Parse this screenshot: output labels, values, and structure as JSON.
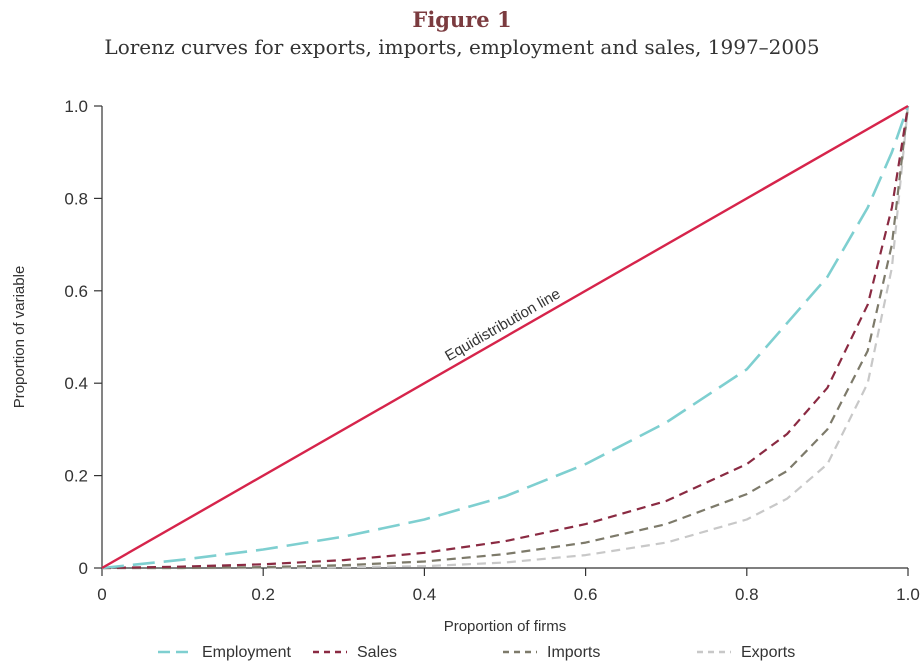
{
  "header": {
    "figure_label": "Figure 1",
    "title": "Lorenz curves for exports, imports, employment and sales, 1997–2005"
  },
  "chart_data": {
    "type": "line",
    "title": "Lorenz curves for exports, imports, employment and sales, 1997–2005",
    "xlabel": "Proportion of firms",
    "ylabel": "Proportion of variable",
    "xlim": [
      0,
      1
    ],
    "ylim": [
      0,
      1
    ],
    "x_ticks": [
      {
        "value": 0,
        "label": "0"
      },
      {
        "value": 0.2,
        "label": "0.2"
      },
      {
        "value": 0.4,
        "label": "0.4"
      },
      {
        "value": 0.6,
        "label": "0.6"
      },
      {
        "value": 0.8,
        "label": "0.8"
      },
      {
        "value": 1.0,
        "label": "1.0"
      }
    ],
    "y_ticks": [
      {
        "value": 0,
        "label": "0"
      },
      {
        "value": 0.2,
        "label": "0.2"
      },
      {
        "value": 0.4,
        "label": "0.4"
      },
      {
        "value": 0.6,
        "label": "0.6"
      },
      {
        "value": 0.8,
        "label": "0.8"
      },
      {
        "value": 1.0,
        "label": "1.0"
      }
    ],
    "grid": false,
    "legend_position": "bottom",
    "annotation": {
      "text": "Equidistribution line",
      "x": 0.5,
      "y": 0.5
    },
    "series": [
      {
        "name": "Equidistribution line",
        "in_legend": false,
        "color": "#d6244b",
        "style": "solid",
        "x": [
          0,
          1
        ],
        "y": [
          0,
          1
        ]
      },
      {
        "name": "Employment",
        "in_legend": true,
        "color": "#7ecfd0",
        "style": "long-dash",
        "x": [
          0,
          0.1,
          0.2,
          0.3,
          0.4,
          0.5,
          0.6,
          0.7,
          0.8,
          0.9,
          0.95,
          0.98,
          1.0
        ],
        "y": [
          0,
          0.018,
          0.04,
          0.068,
          0.105,
          0.155,
          0.225,
          0.315,
          0.43,
          0.63,
          0.78,
          0.9,
          1.0
        ]
      },
      {
        "name": "Sales",
        "in_legend": true,
        "color": "#8a2a42",
        "style": "dash",
        "x": [
          0,
          0.1,
          0.2,
          0.3,
          0.4,
          0.5,
          0.6,
          0.7,
          0.8,
          0.85,
          0.9,
          0.95,
          0.98,
          1.0
        ],
        "y": [
          0,
          0.003,
          0.008,
          0.017,
          0.033,
          0.058,
          0.095,
          0.145,
          0.225,
          0.29,
          0.39,
          0.57,
          0.78,
          1.0
        ]
      },
      {
        "name": "Imports",
        "in_legend": true,
        "color": "#7d7a6a",
        "style": "dash",
        "x": [
          0,
          0.1,
          0.2,
          0.3,
          0.4,
          0.5,
          0.6,
          0.7,
          0.8,
          0.85,
          0.9,
          0.95,
          0.98,
          1.0
        ],
        "y": [
          0,
          0,
          0.002,
          0.006,
          0.014,
          0.03,
          0.055,
          0.095,
          0.16,
          0.21,
          0.3,
          0.47,
          0.7,
          1.0
        ]
      },
      {
        "name": "Exports",
        "in_legend": true,
        "color": "#c8c8c8",
        "style": "dash",
        "x": [
          0,
          0.2,
          0.4,
          0.5,
          0.6,
          0.7,
          0.8,
          0.85,
          0.9,
          0.95,
          0.98,
          1.0
        ],
        "y": [
          0,
          0,
          0.004,
          0.012,
          0.028,
          0.055,
          0.105,
          0.15,
          0.225,
          0.4,
          0.65,
          1.0
        ]
      }
    ]
  }
}
